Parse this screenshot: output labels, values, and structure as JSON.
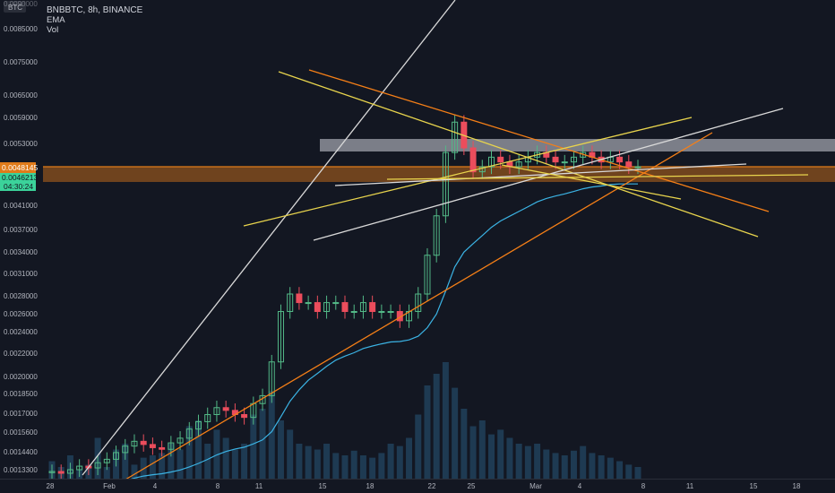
{
  "legend": {
    "symbol_line": "BNBBTC, 8h, BINANCE",
    "indicators": [
      "EMA",
      "Vol"
    ],
    "currency_badge": "BTC"
  },
  "colors": {
    "background": "#131722",
    "text": "#b2b5be",
    "up": "#53b987",
    "down": "#eb4d5c",
    "ema": "#3bb3e4",
    "volume": "#1e3a52",
    "orange_band": "#e07b1a",
    "white_band": "#d1d4dc",
    "yellow_line": "#e8d44d",
    "orange_line": "#f57f17",
    "white_line": "#d9d9d9"
  },
  "price_axis": {
    "ticks": [
      "0.0085000",
      "0.0075000",
      "0.0065000",
      "0.0059000",
      "0.0053000",
      "0.0041000",
      "0.0037000",
      "0.0034000",
      "0.0031000",
      "0.0028000",
      "0.0026000",
      "0.0024000",
      "0.0022000",
      "0.0020000",
      "0.0018500",
      "0.0017000",
      "0.0015600",
      "0.0014400",
      "0.0013300"
    ],
    "current_price_label": "0.00481​45",
    "ema_price_label": "0.0046213",
    "countdown_label": "04:30:24",
    "top_clip_label": "0.0090000"
  },
  "time_axis": {
    "ticks": [
      "28",
      "Feb",
      "4",
      "8",
      "11",
      "15",
      "18",
      "22",
      "25",
      "Mar",
      "4",
      "8",
      "11",
      "15",
      "18"
    ]
  },
  "chart_data": {
    "type": "candlestick",
    "scale": "log",
    "series": [
      {
        "name": "EMA"
      },
      {
        "name": "Vol"
      }
    ],
    "price_range": [
      0.00128,
      0.0092
    ],
    "approx_closes": [
      0.00132,
      0.00131,
      0.00133,
      0.00135,
      0.00134,
      0.00137,
      0.00139,
      0.00143,
      0.00147,
      0.0015,
      0.00148,
      0.00146,
      0.00145,
      0.00149,
      0.00152,
      0.00158,
      0.00163,
      0.00168,
      0.00173,
      0.00171,
      0.00168,
      0.00166,
      0.00176,
      0.00182,
      0.0021,
      0.0026,
      0.0028,
      0.0027,
      0.0027,
      0.0026,
      0.0027,
      0.0027,
      0.0026,
      0.0026,
      0.0027,
      0.0026,
      0.0026,
      0.0026,
      0.0025,
      0.0026,
      0.0028,
      0.0033,
      0.0039,
      0.0051,
      0.0058,
      0.0052,
      0.0047,
      0.0048,
      0.005,
      0.0049,
      0.0048,
      0.0049,
      0.005,
      0.0051,
      0.005,
      0.0049,
      0.0049,
      0.005,
      0.0051,
      0.005,
      0.0049,
      0.005,
      0.0049,
      0.0048,
      0.0048
    ],
    "last_price": 0.0048145,
    "ema_last": 0.0046213
  }
}
